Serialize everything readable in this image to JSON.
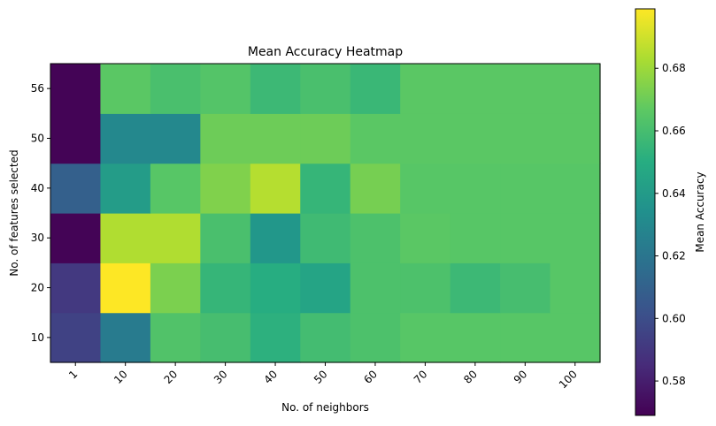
{
  "chart_data": {
    "type": "heatmap",
    "title": "Mean Accuracy Heatmap",
    "xlabel": "No. of neighbors",
    "ylabel": "No. of features selected",
    "x_categories": [
      "1",
      "10",
      "20",
      "30",
      "40",
      "50",
      "60",
      "70",
      "80",
      "90",
      "100"
    ],
    "y_categories": [
      "10",
      "20",
      "30",
      "40",
      "50",
      "56"
    ],
    "values": [
      [
        0.595,
        0.623,
        0.663,
        0.66,
        0.652,
        0.659,
        0.662,
        0.665,
        0.665,
        0.665,
        0.665
      ],
      [
        0.591,
        0.699,
        0.673,
        0.655,
        0.65,
        0.645,
        0.662,
        0.662,
        0.657,
        0.66,
        0.665
      ],
      [
        0.57,
        0.684,
        0.684,
        0.661,
        0.638,
        0.658,
        0.662,
        0.666,
        0.665,
        0.665,
        0.665
      ],
      [
        0.609,
        0.641,
        0.665,
        0.674,
        0.685,
        0.655,
        0.672,
        0.665,
        0.665,
        0.665,
        0.665
      ],
      [
        0.57,
        0.63,
        0.63,
        0.67,
        0.67,
        0.67,
        0.666,
        0.666,
        0.666,
        0.666,
        0.666
      ],
      [
        0.57,
        0.666,
        0.661,
        0.664,
        0.657,
        0.661,
        0.656,
        0.666,
        0.666,
        0.666,
        0.666
      ]
    ],
    "colormap": "viridis",
    "vmin": 0.569,
    "vmax": 0.699,
    "colorbar": {
      "label": "Mean Accuracy",
      "ticks": [
        "0.58",
        "0.60",
        "0.62",
        "0.64",
        "0.66",
        "0.68"
      ]
    },
    "grid": false,
    "x_tick_rotation_deg": 45
  }
}
